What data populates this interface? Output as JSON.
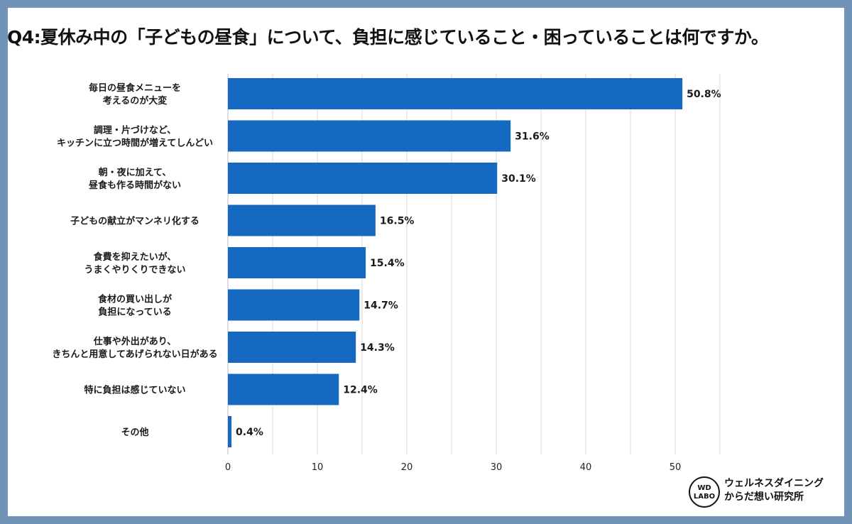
{
  "title": "Q4:夏休み中の「子どもの昼食」について、負担に感じていること・困っていることは何ですか。",
  "brand": {
    "line1": "ウェルネスダイニング",
    "line2": "からだ想い研究所",
    "badge_line1": "WD",
    "badge_line2": "LABO"
  },
  "colors": {
    "background": "#7193b8",
    "bar": "#1569c0",
    "grid": "#d9d9d9"
  },
  "chart_data": {
    "type": "bar",
    "orientation": "horizontal",
    "categories": [
      [
        "毎日の昼食メニューを",
        "考えるのが大変"
      ],
      [
        "調理・片づけなど、",
        "キッチンに立つ時間が増えてしんどい"
      ],
      [
        "朝・夜に加えて、",
        "昼食も作る時間がない"
      ],
      [
        "子どもの献立がマンネリ化する"
      ],
      [
        "食費を抑えたいが、",
        "うまくやりくりできない"
      ],
      [
        "食材の買い出しが",
        "負担になっている"
      ],
      [
        "仕事や外出があり、",
        "きちんと用意してあげられない日がある"
      ],
      [
        "特に負担は感じていない"
      ],
      [
        "その他"
      ]
    ],
    "values": [
      50.8,
      31.6,
      30.1,
      16.5,
      15.4,
      14.7,
      14.3,
      12.4,
      0.4
    ],
    "value_labels": [
      "50.8%",
      "31.6%",
      "30.1%",
      "16.5%",
      "15.4%",
      "14.7%",
      "14.3%",
      "12.4%",
      "0.4%"
    ],
    "xlim": [
      0,
      55
    ],
    "xticks": [
      0,
      10,
      20,
      30,
      40,
      50
    ],
    "xtick_labels": [
      "0",
      "10",
      "20",
      "30",
      "40",
      "50"
    ],
    "grid": true
  }
}
